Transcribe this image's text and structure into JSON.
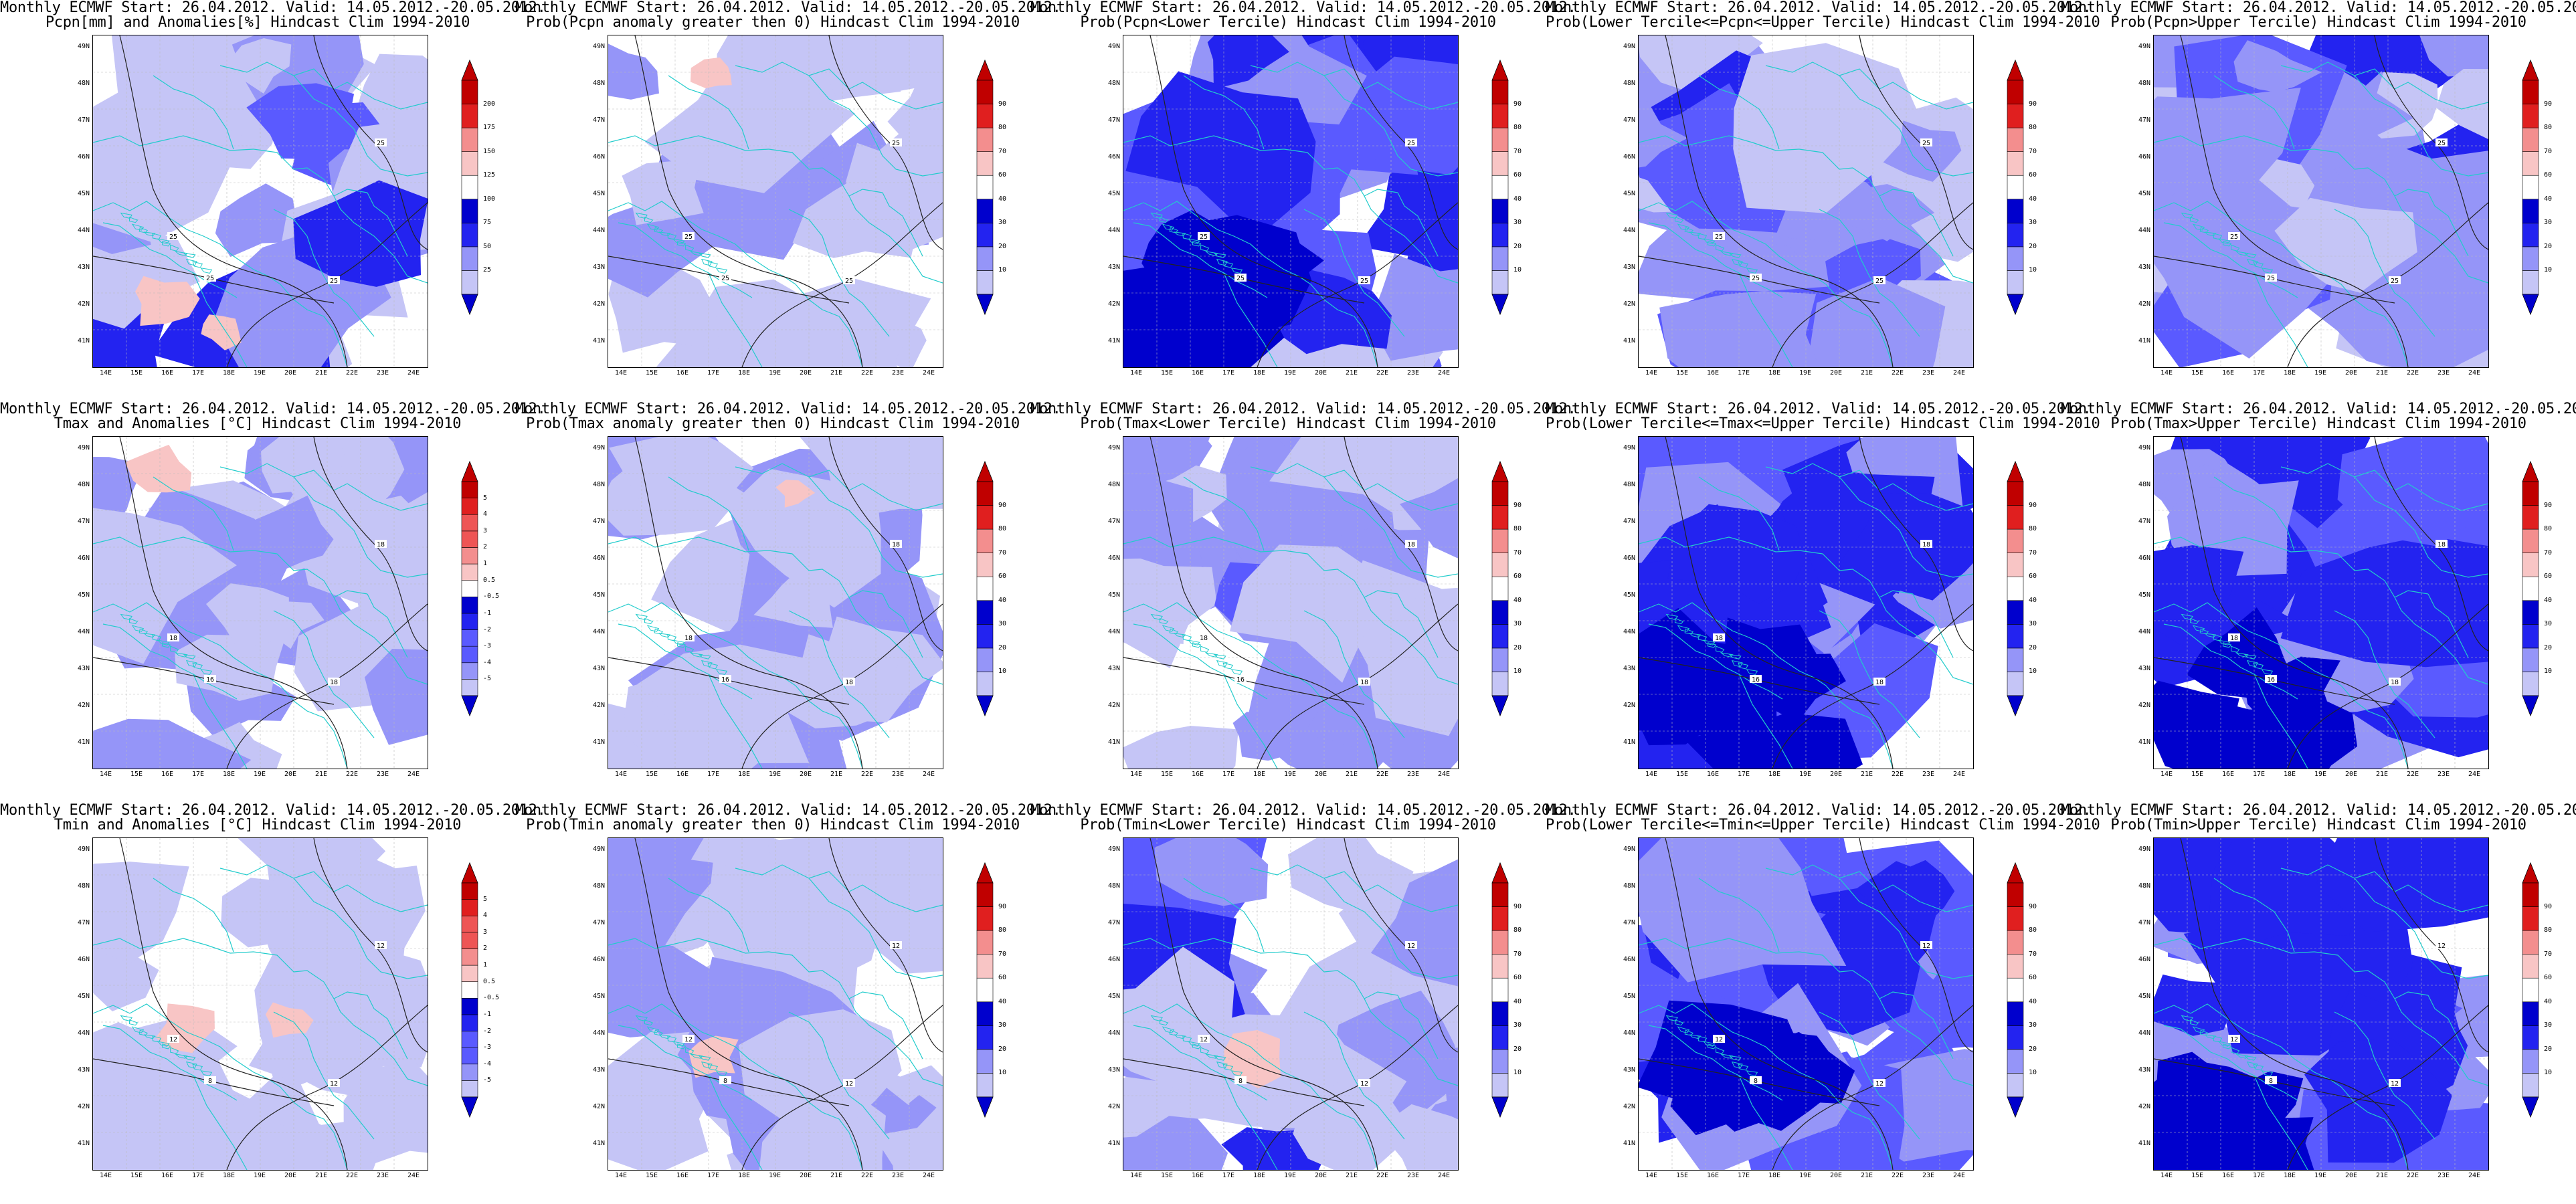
{
  "title_line1": "Monthly ECMWF Start: 26.04.2012. Valid: 14.05.2012.-20.05.2012.",
  "lat_labels": [
    "49N",
    "48N",
    "47N",
    "46N",
    "45N",
    "44N",
    "43N",
    "42N",
    "41N"
  ],
  "lon_labels": [
    "14E",
    "15E",
    "16E",
    "17E",
    "18E",
    "19E",
    "20E",
    "21E",
    "22E",
    "23E",
    "24E"
  ],
  "colors": {
    "blue_levels": [
      "#0000cd",
      "#2323f0",
      "#5a5aff",
      "#9595f8",
      "#c5c5f6"
    ],
    "red_levels": [
      "#f8c5c5",
      "#f38e8e",
      "#ee5555",
      "#e01f1f",
      "#c00000"
    ],
    "contour": "#222222",
    "borders": "#22cccc"
  },
  "colorbars": {
    "pcpn": [
      "25",
      "50",
      "75",
      "100",
      "125",
      "150",
      "175",
      "200"
    ],
    "temp": [
      "-5",
      "-4",
      "-3",
      "-2",
      "-1",
      "-0.5",
      "0.5",
      "1",
      "2",
      "3",
      "4",
      "5"
    ],
    "prob": [
      "10",
      "20",
      "30",
      "40",
      "60",
      "70",
      "80",
      "90"
    ]
  },
  "panels": [
    {
      "title2": "Pcpn[mm] and Anomalies[%] Hindcast Clim 1994-2010",
      "cbar": "pcpn",
      "contours": [
        "25",
        "25",
        "25",
        "25"
      ]
    },
    {
      "title2": "Prob(Pcpn anomaly greater then 0) Hindcast Clim 1994-2010",
      "cbar": "prob",
      "contours": [
        "25",
        "25",
        "25",
        "25"
      ]
    },
    {
      "title2": "Prob(Pcpn<Lower Tercile) Hindcast Clim 1994-2010",
      "cbar": "prob",
      "contours": [
        "25",
        "25",
        "25",
        "25"
      ]
    },
    {
      "title2": "Prob(Lower Tercile<=Pcpn<=Upper Tercile) Hindcast Clim 1994-2010",
      "cbar": "prob",
      "contours": [
        "25",
        "25",
        "25",
        "25"
      ]
    },
    {
      "title2": "Prob(Pcpn>Upper Tercile) Hindcast Clim 1994-2010",
      "cbar": "prob",
      "contours": [
        "25",
        "25",
        "25",
        "25"
      ]
    },
    {
      "title2": "Tmax and Anomalies [°C] Hindcast Clim 1994-2010",
      "cbar": "temp",
      "contours": [
        "18",
        "18",
        "16",
        "18"
      ]
    },
    {
      "title2": "Prob(Tmax anomaly greater then 0) Hindcast Clim 1994-2010",
      "cbar": "prob",
      "contours": [
        "18",
        "18",
        "16",
        "18"
      ]
    },
    {
      "title2": "Prob(Tmax<Lower Tercile) Hindcast Clim 1994-2010",
      "cbar": "prob",
      "contours": [
        "18",
        "18",
        "16",
        "18"
      ]
    },
    {
      "title2": "Prob(Lower Tercile<=Tmax<=Upper Tercile) Hindcast Clim 1994-2010",
      "cbar": "prob",
      "contours": [
        "18",
        "18",
        "16",
        "18"
      ]
    },
    {
      "title2": "Prob(Tmax>Upper Tercile) Hindcast Clim 1994-2010",
      "cbar": "prob",
      "contours": [
        "18",
        "18",
        "16",
        "18"
      ]
    },
    {
      "title2": "Tmin and Anomalies [°C] Hindcast Clim 1994-2010",
      "cbar": "temp",
      "contours": [
        "12",
        "12",
        "8",
        "12"
      ]
    },
    {
      "title2": "Prob(Tmin anomaly greater then 0) Hindcast Clim 1994-2010",
      "cbar": "prob",
      "contours": [
        "12",
        "12",
        "8",
        "12"
      ]
    },
    {
      "title2": "Prob(Tmin<Lower Tercile) Hindcast Clim 1994-2010",
      "cbar": "prob",
      "contours": [
        "12",
        "12",
        "8",
        "12"
      ]
    },
    {
      "title2": "Prob(Lower Tercile<=Tmin<=Upper Tercile) Hindcast Clim 1994-2010",
      "cbar": "prob",
      "contours": [
        "12",
        "12",
        "8",
        "12"
      ]
    },
    {
      "title2": "Prob(Tmin>Upper Tercile) Hindcast Clim 1994-2010",
      "cbar": "prob",
      "contours": [
        "12",
        "12",
        "8",
        "12"
      ]
    }
  ]
}
